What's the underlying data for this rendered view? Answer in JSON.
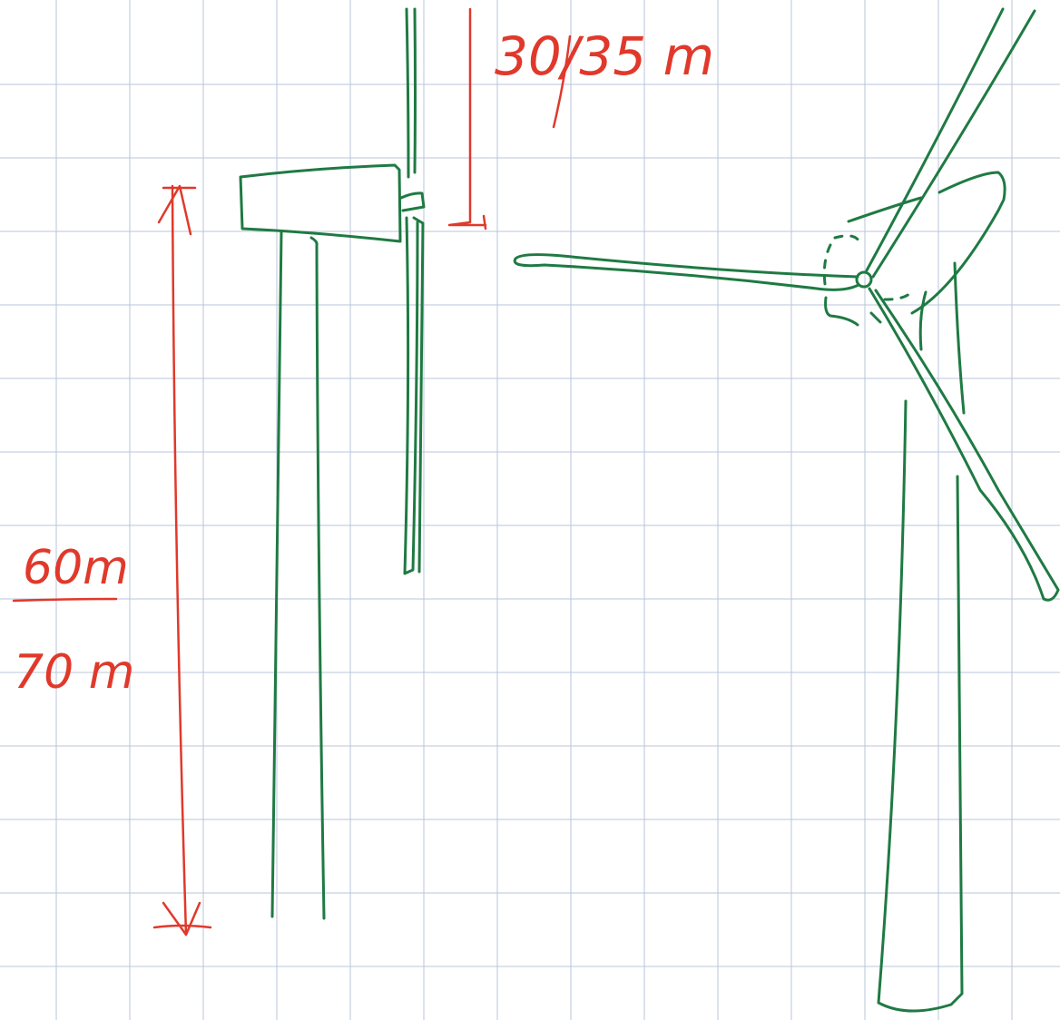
{
  "annotations": {
    "blade_length": "30/35 m",
    "tower_height_low": "60m",
    "tower_height_high": "70 m"
  }
}
